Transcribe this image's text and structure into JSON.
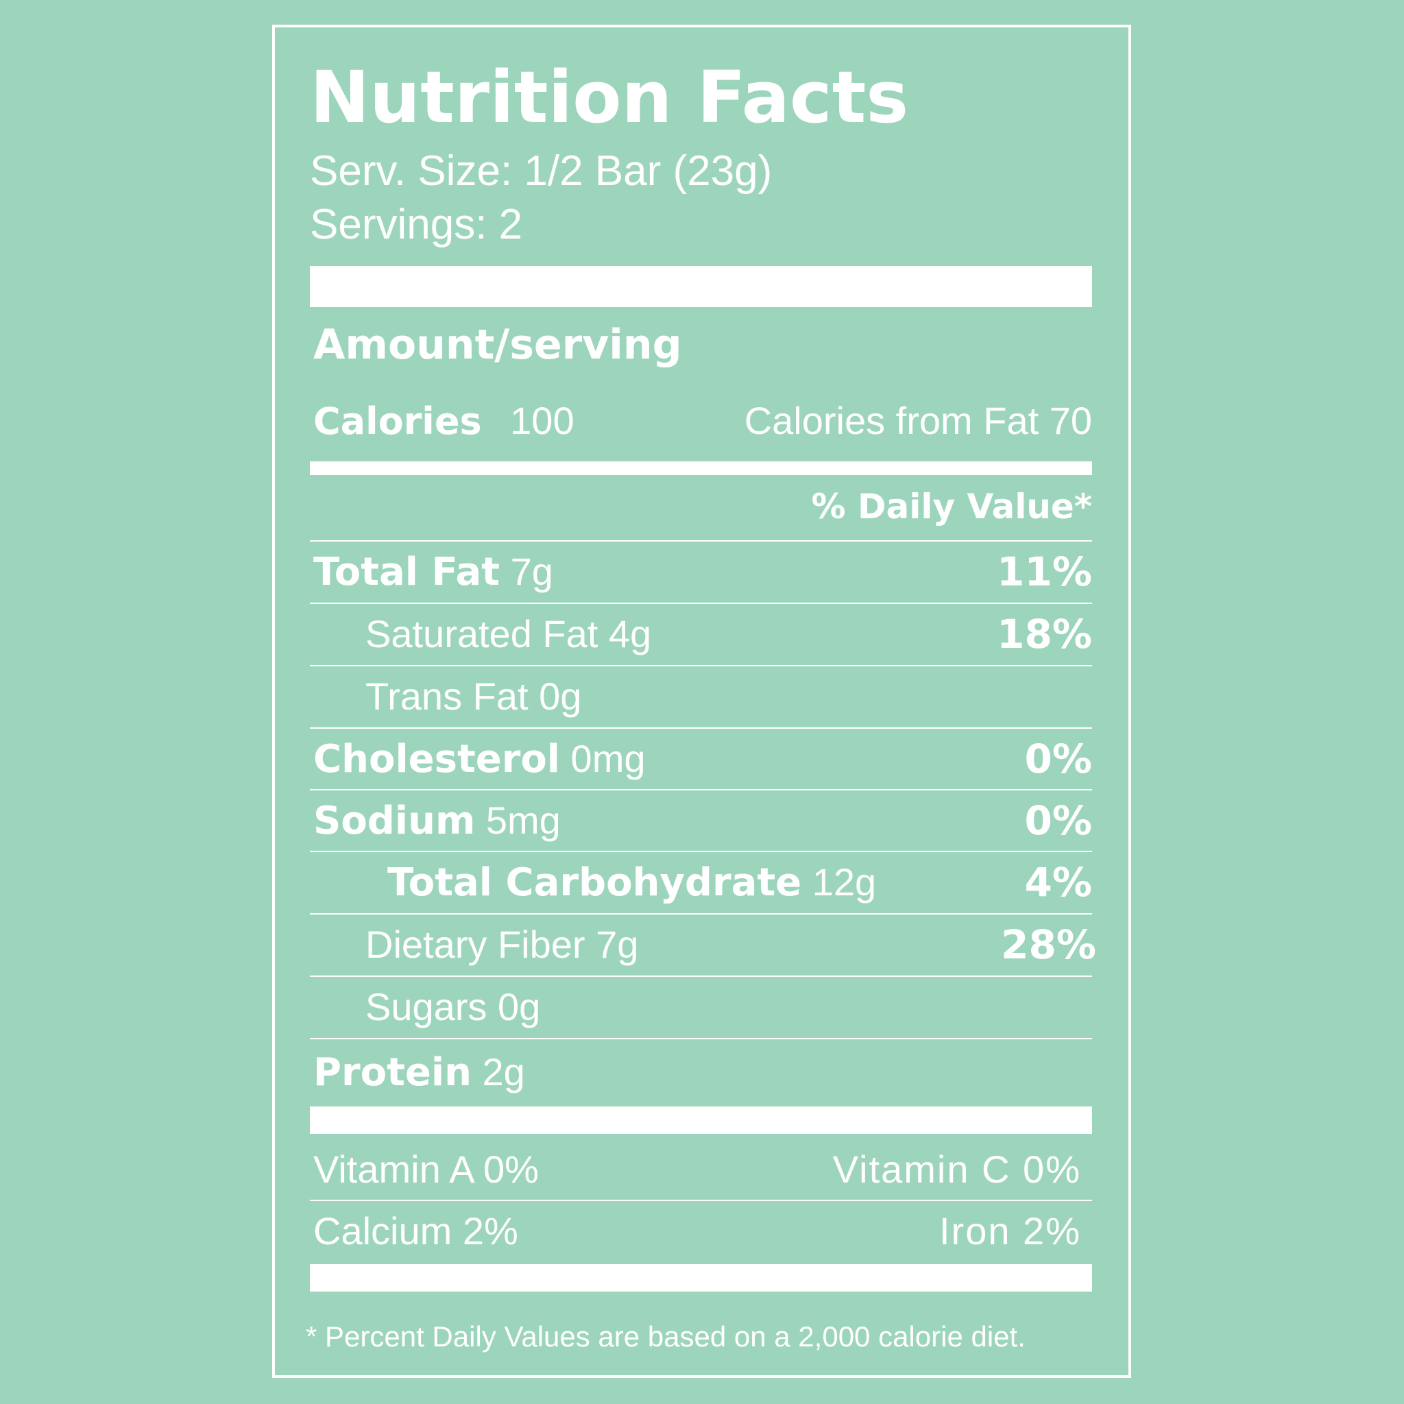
{
  "label": {
    "title": "Nutrition Facts",
    "serving_size": "Serv. Size: 1/2 Bar (23g)",
    "servings": "Servings: 2",
    "amount_heading": "Amount/serving",
    "calories_label": "Calories",
    "calories_value": "100",
    "calories_from_fat": "Calories from Fat 70",
    "daily_value_heading": "% Daily Value*",
    "nutrients": [
      {
        "name": "Total Fat",
        "amount": "7g",
        "percent": "11%"
      },
      {
        "name": "Saturated Fat",
        "amount": "4g",
        "percent": "18%"
      },
      {
        "name": "Trans Fat",
        "amount": "0g",
        "percent": ""
      },
      {
        "name": "Cholesterol",
        "amount": "0mg",
        "percent": "0%"
      },
      {
        "name": "Sodium",
        "amount": "5mg",
        "percent": "0%"
      },
      {
        "name": "Total Carbohydrate",
        "amount": "12g",
        "percent": "4%"
      },
      {
        "name": "Dietary Fiber",
        "amount": "7g",
        "percent": "28%"
      },
      {
        "name": "Sugars",
        "amount": "0g",
        "percent": ""
      },
      {
        "name": "Protein",
        "amount": "2g",
        "percent": ""
      }
    ],
    "vitamins": [
      {
        "left": "Vitamin A 0%",
        "right": "Vitamin C 0%"
      },
      {
        "left": "Calcium 2%",
        "right": "Iron 2%"
      }
    ],
    "footnote": "* Percent Daily Values are based on a 2,000 calorie diet."
  },
  "colors": {
    "background": "#9dd5bc",
    "foreground": "#ffffff"
  }
}
